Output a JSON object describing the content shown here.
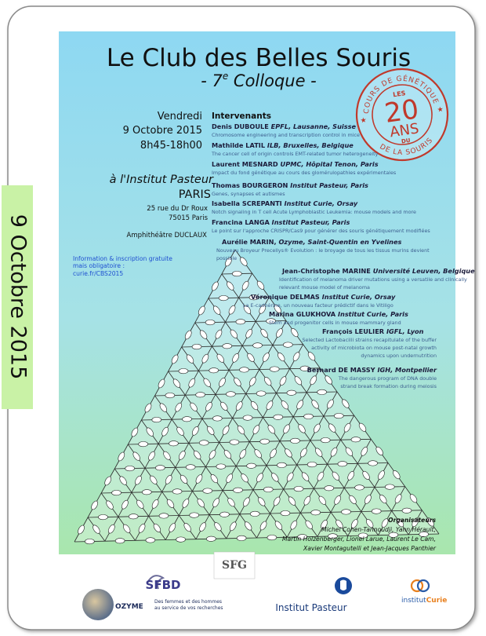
{
  "side_banner": "9 Octobre 2015",
  "header": {
    "title": "Le Club des Belles Souris",
    "subtitle": {
      "before": "- 7",
      "sup": "e",
      "after": " Colloque -"
    }
  },
  "stamp": {
    "ring_top": "COURS DE GÉNÉTIQUE",
    "les": "LES",
    "number": "20",
    "ans": "ANS",
    "du": "DU",
    "ring_bottom": "DE LA SOURIS"
  },
  "event": {
    "day": "Vendredi",
    "date": "9 Octobre 2015",
    "time": "8h45-18h00",
    "venue": "à l'Institut Pasteur",
    "city": "PARIS",
    "street": "25 rue du Dr Roux",
    "postcode": "75015 Paris",
    "room": "Amphithéâtre DUCLAUX",
    "info": [
      "Information & inscription gratuite",
      "mais obligatoire :",
      "curie.fr/CBS2015"
    ]
  },
  "speakers_heading": "Intervenants",
  "speakers": [
    {
      "name": "Denis DUBOULE",
      "affiliation": "EPFL, Lausanne, Suisse",
      "talk": [
        "Chromosome engineering and transcription control in mice"
      ]
    },
    {
      "name": "Mathilde LATIL",
      "affiliation": "ILB, Bruxelles, Belgique",
      "talk": [
        "The cancer cell of origin controls EMT-related tumor heterogeneity"
      ]
    },
    {
      "name": "Laurent MESNARD",
      "affiliation": "UPMC, Hôpital Tenon, Paris",
      "talk": [
        "Impact du fond génétique au cours des glomérulopathies expérimentales"
      ]
    },
    {
      "name": "Thomas BOURGERON",
      "affiliation": "Institut Pasteur, Paris",
      "talk": [
        "Genes, synapses et autismes"
      ]
    },
    {
      "name": "Isabella SCREPANTI",
      "affiliation": "Institut Curie, Orsay",
      "talk": [
        "Notch signaling in T cell Acute Lymphoblastic Leukemia: mouse models and more"
      ]
    },
    {
      "name": "Francina LANGA",
      "affiliation": "Institut Pasteur, Paris",
      "talk": [
        "Le point sur l'approche CRISPR/Cas9 pour générer des souris génétiquement modifiées"
      ]
    },
    {
      "name": "Aurélie MARIN,",
      "affiliation": "Ozyme, Saint-Quentin en Yvelines",
      "talk": [
        "Nouveau Broyeur Precellys® Evolution : le broyage de tous les tissus murins devient",
        "possible"
      ]
    },
    {
      "name": "Jean-Christophe MARINE",
      "affiliation": "Université Leuven, Belgique",
      "talk": [
        "Identification of melanoma driver mutations using a versatile and clinically",
        "relevant mouse model of melanoma"
      ]
    },
    {
      "name": "Véronique DELMAS",
      "affiliation": "Institut Curie, Orsay",
      "talk": [
        "La E-cadhérine, un nouveau facteur prédictif dans le Vitiligo"
      ]
    },
    {
      "name": "Marina GLUKHOVA",
      "affiliation": "Institut Curie, Paris",
      "talk": [
        "Stem and progenitor cells in mouse mammary gland"
      ]
    },
    {
      "name": "François LEULIER",
      "affiliation": "IGFL, Lyon",
      "talk": [
        "Selected Lactobacilli strains recapitulate of the buffer",
        "activity of microbiota on mouse post-natal growth",
        "dynamics upon undernutrition"
      ]
    },
    {
      "name": "Bernard DE MASSY",
      "affiliation": "IGH, Montpellier",
      "talk": [
        "The dangerous program of DNA double",
        "strand break formation during meiosis"
      ]
    }
  ],
  "organizers": {
    "heading": "Organisateurs",
    "names": [
      "Michel Cohen-Tannoudji, Yann Hérault,",
      "Martin Holzenberger, Lionel Larue, Laurent Le Cam,",
      "Xavier Montagutelli et Jean-Jacques Panthier"
    ]
  },
  "logos": {
    "sfbd": "SFBD",
    "sfg": "SFG",
    "ozyme": "OZYME",
    "ozyme_tagline": [
      "Des femmes et des hommes",
      "au service de vos recherches"
    ],
    "pasteur": "Institut Pasteur",
    "curie_prefix": "institut",
    "curie_name": "Curie"
  }
}
